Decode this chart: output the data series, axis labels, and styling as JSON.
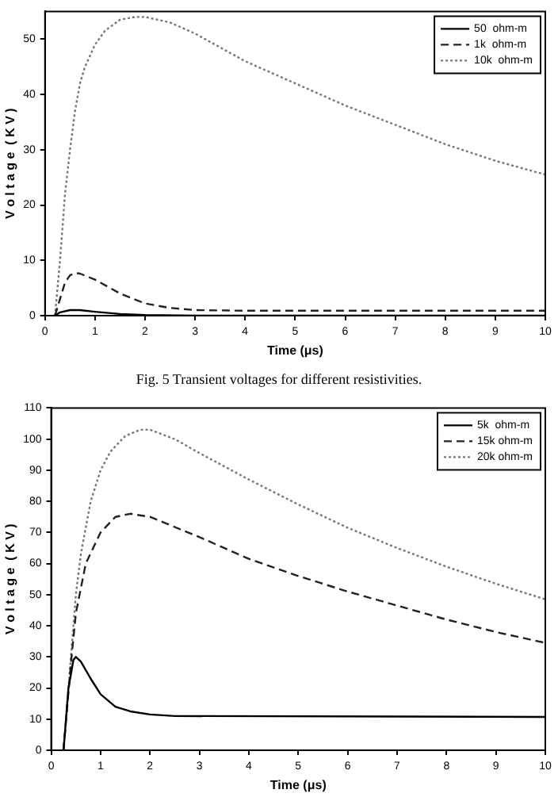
{
  "chart_data": [
    {
      "type": "line",
      "xlabel": "Time (μs)",
      "ylabel": "V o l t a g e  ( K V )",
      "xlim": [
        0,
        10
      ],
      "xticks": [
        0,
        1,
        2,
        3,
        4,
        5,
        6,
        7,
        8,
        9,
        10
      ],
      "ylim": [
        0,
        55
      ],
      "yticks": [
        0,
        10,
        20,
        30,
        40,
        50
      ],
      "grid": false,
      "legend": "top right",
      "marker": "none",
      "annotations": [
        "Fig. 5  Transient  voltages for different resistivities."
      ],
      "series": [
        {
          "name": "50  ohm-m",
          "color": "#000000",
          "line_style": "solid",
          "x": [
            0.2,
            0.3,
            0.5,
            0.7,
            1,
            1.5,
            2,
            3,
            10
          ],
          "values": [
            0,
            0.6,
            1,
            1,
            0.7,
            0.3,
            0.1,
            0,
            0
          ]
        },
        {
          "name": "1k  ohm-m",
          "color": "#222222",
          "line_style": "dashed",
          "x": [
            0.2,
            0.3,
            0.4,
            0.5,
            0.6,
            0.7,
            1,
            1.5,
            2,
            2.5,
            3,
            4,
            10
          ],
          "values": [
            0,
            3,
            6,
            7.3,
            7.7,
            7.6,
            6.5,
            4,
            2.2,
            1.4,
            1,
            0.9,
            0.9
          ]
        },
        {
          "name": "10k  ohm-m",
          "color": "#777777",
          "line_style": "dotted",
          "x": [
            0.2,
            0.3,
            0.4,
            0.5,
            0.6,
            0.7,
            0.8,
            1,
            1.2,
            1.5,
            1.8,
            2,
            2.5,
            3,
            4,
            5,
            6,
            7,
            8,
            9,
            10
          ],
          "values": [
            0,
            10,
            22,
            30,
            37,
            42,
            45,
            49,
            51.5,
            53.5,
            54,
            54,
            53,
            51,
            46,
            42,
            38,
            34.5,
            31,
            28,
            25.5
          ]
        }
      ]
    },
    {
      "type": "line",
      "xlabel": "Time (μs)",
      "ylabel": "V o l t a g e  ( K V )",
      "xlim": [
        0,
        10
      ],
      "xticks": [
        0,
        1,
        2,
        3,
        4,
        5,
        6,
        7,
        8,
        9,
        10
      ],
      "ylim": [
        0,
        110
      ],
      "yticks": [
        0,
        10,
        20,
        30,
        40,
        50,
        60,
        70,
        80,
        90,
        100,
        110
      ],
      "grid": false,
      "legend": "top right",
      "marker": "none",
      "series": [
        {
          "name": "5k  ohm-m",
          "color": "#000000",
          "line_style": "solid",
          "x": [
            0.25,
            0.35,
            0.45,
            0.5,
            0.6,
            0.8,
            1,
            1.3,
            1.6,
            2,
            2.5,
            10
          ],
          "values": [
            0,
            20,
            29,
            30,
            28.5,
            23,
            18,
            14,
            12.5,
            11.5,
            11,
            10.7
          ]
        },
        {
          "name": "15k ohm-m",
          "color": "#222222",
          "line_style": "dashed",
          "x": [
            0.25,
            0.4,
            0.5,
            0.7,
            1,
            1.3,
            1.6,
            2,
            3,
            4,
            5,
            6,
            7,
            8,
            9,
            10
          ],
          "values": [
            0,
            28,
            44,
            60,
            70,
            75,
            76,
            75,
            68.5,
            61.5,
            56,
            51,
            46.5,
            42,
            38,
            34.5
          ]
        },
        {
          "name": "20k ohm-m",
          "color": "#777777",
          "line_style": "dotted",
          "x": [
            0.25,
            0.4,
            0.5,
            0.6,
            0.8,
            1,
            1.2,
            1.5,
            1.8,
            2,
            2.5,
            3,
            4,
            5,
            6,
            7,
            8,
            9,
            10
          ],
          "values": [
            0,
            30,
            50,
            63,
            80,
            90,
            96,
            101,
            103,
            103,
            100,
            95.5,
            87,
            79,
            71.5,
            65,
            59,
            53.5,
            48.5
          ]
        }
      ]
    }
  ]
}
